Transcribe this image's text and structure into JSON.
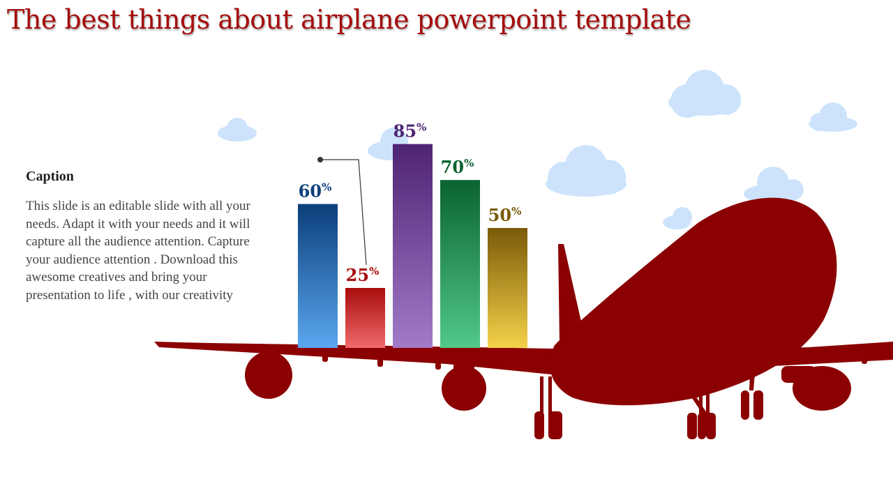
{
  "slide": {
    "title": "The best things about airplane powerpoint template",
    "caption_heading": "Caption",
    "caption_body": "This slide is an editable slide with all your needs. Adapt it with your needs and it will capture all the audience attention. Capture your audience attention . Download this awesome creatives and bring your presentation to life , with our creativity"
  },
  "colors": {
    "title": "#a50d0d",
    "airplane": "#8b0000",
    "cloud": "#cce3fb"
  },
  "chart_data": {
    "type": "bar",
    "categories": [
      "",
      "",
      "",
      "",
      ""
    ],
    "values": [
      60,
      25,
      85,
      70,
      50
    ],
    "ylim": [
      0,
      100
    ],
    "grid": false,
    "series_colors": [
      {
        "top": "#0b3f7a",
        "bottom": "#5aa6f0",
        "label": "#0b3f7a"
      },
      {
        "top": "#a80d0d",
        "bottom": "#f06a6a",
        "label": "#a80d0d"
      },
      {
        "top": "#4e2473",
        "bottom": "#a17ac8",
        "label": "#4e2473"
      },
      {
        "top": "#0a6330",
        "bottom": "#52c98a",
        "label": "#0a6330"
      },
      {
        "top": "#7a5a08",
        "bottom": "#f5d24a",
        "label": "#7a5a08"
      }
    ],
    "label_suffix": "%"
  }
}
